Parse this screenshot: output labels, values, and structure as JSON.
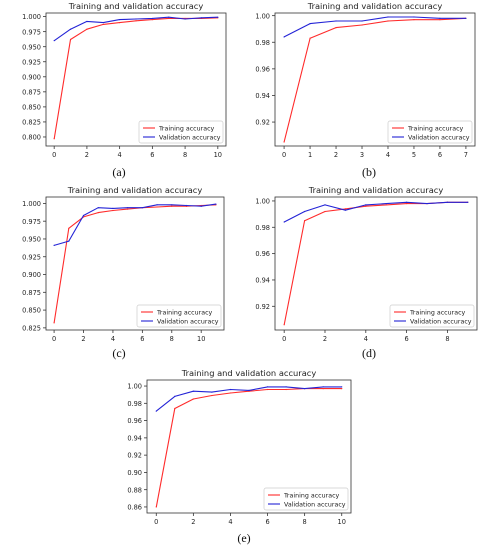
{
  "figure": {
    "panel_labels": [
      "(a)",
      "(b)",
      "(c)",
      "(d)",
      "(e)"
    ]
  },
  "colors": {
    "training": "#ff2b2b",
    "validation": "#2323d6",
    "axis": "#333333"
  },
  "chart_data": [
    {
      "id": "a",
      "type": "line",
      "title": "Training and validation accuracy",
      "xlim": [
        -0.5,
        10.5
      ],
      "ylim": [
        0.785,
        1.006
      ],
      "xticks": [
        0,
        2,
        4,
        6,
        8,
        10
      ],
      "yticks": [
        0.8,
        0.825,
        0.85,
        0.875,
        0.9,
        0.925,
        0.95,
        0.975,
        1.0
      ],
      "ytick_labels": [
        "0.800",
        "0.825",
        "0.850",
        "0.875",
        "0.900",
        "0.925",
        "0.950",
        "0.975",
        "1.000"
      ],
      "legend_position": "bottom-right",
      "series": [
        {
          "name": "Training accuracy",
          "x": [
            0,
            1,
            2,
            3,
            4,
            5,
            6,
            7,
            8,
            9,
            10
          ],
          "y": [
            0.797,
            0.962,
            0.979,
            0.987,
            0.99,
            0.993,
            0.995,
            0.997,
            0.997,
            0.997,
            0.998
          ]
        },
        {
          "name": "Validation accuracy",
          "x": [
            0,
            1,
            2,
            3,
            4,
            5,
            6,
            7,
            8,
            9,
            10
          ],
          "y": [
            0.96,
            0.979,
            0.992,
            0.99,
            0.995,
            0.996,
            0.997,
            0.999,
            0.996,
            0.998,
            0.999
          ]
        }
      ]
    },
    {
      "id": "b",
      "type": "line",
      "title": "Training and validation accuracy",
      "xlim": [
        -0.35,
        7.35
      ],
      "ylim": [
        0.902,
        1.002
      ],
      "xticks": [
        0,
        1,
        2,
        3,
        4,
        5,
        6,
        7
      ],
      "yticks": [
        0.92,
        0.94,
        0.96,
        0.98,
        1.0
      ],
      "ytick_labels": [
        "0.92",
        "0.94",
        "0.96",
        "0.98",
        "1.00"
      ],
      "legend_position": "bottom-right",
      "series": [
        {
          "name": "Training accuracy",
          "x": [
            0,
            1,
            2,
            3,
            4,
            5,
            6,
            7
          ],
          "y": [
            0.905,
            0.983,
            0.991,
            0.993,
            0.996,
            0.997,
            0.997,
            0.998
          ]
        },
        {
          "name": "Validation accuracy",
          "x": [
            0,
            1,
            2,
            3,
            4,
            5,
            6,
            7
          ],
          "y": [
            0.984,
            0.994,
            0.996,
            0.996,
            0.999,
            0.999,
            0.998,
            0.998
          ]
        }
      ]
    },
    {
      "id": "c",
      "type": "line",
      "title": "Training and validation accuracy",
      "xlim": [
        -0.55,
        11.55
      ],
      "ylim": [
        0.822,
        1.009
      ],
      "xticks": [
        0,
        2,
        4,
        6,
        8,
        10
      ],
      "yticks": [
        0.825,
        0.85,
        0.875,
        0.9,
        0.925,
        0.95,
        0.975,
        1.0
      ],
      "ytick_labels": [
        "0.825",
        "0.850",
        "0.875",
        "0.900",
        "0.925",
        "0.950",
        "0.975",
        "1.000"
      ],
      "legend_position": "bottom-right",
      "series": [
        {
          "name": "Training accuracy",
          "x": [
            0,
            1,
            2,
            3,
            4,
            5,
            6,
            7,
            8,
            9,
            10,
            11
          ],
          "y": [
            0.832,
            0.965,
            0.981,
            0.987,
            0.99,
            0.992,
            0.994,
            0.995,
            0.996,
            0.996,
            0.997,
            0.998
          ]
        },
        {
          "name": "Validation accuracy",
          "x": [
            0,
            1,
            2,
            3,
            4,
            5,
            6,
            7,
            8,
            9,
            10,
            11
          ],
          "y": [
            0.941,
            0.947,
            0.983,
            0.994,
            0.993,
            0.994,
            0.994,
            0.998,
            0.998,
            0.997,
            0.996,
            0.999
          ]
        }
      ]
    },
    {
      "id": "d",
      "type": "line",
      "title": "Training and validation accuracy",
      "xlim": [
        -0.45,
        9.45
      ],
      "ylim": [
        0.902,
        1.003
      ],
      "xticks": [
        0,
        2,
        4,
        6,
        8
      ],
      "yticks": [
        0.92,
        0.94,
        0.96,
        0.98,
        1.0
      ],
      "ytick_labels": [
        "0.92",
        "0.94",
        "0.96",
        "0.98",
        "1.00"
      ],
      "legend_position": "bottom-right",
      "series": [
        {
          "name": "Training accuracy",
          "x": [
            0,
            1,
            2,
            3,
            4,
            5,
            6,
            7,
            8,
            9
          ],
          "y": [
            0.906,
            0.985,
            0.992,
            0.994,
            0.996,
            0.997,
            0.998,
            0.998,
            0.999,
            0.999
          ]
        },
        {
          "name": "Validation accuracy",
          "x": [
            0,
            1,
            2,
            3,
            4,
            5,
            6,
            7,
            8,
            9
          ],
          "y": [
            0.984,
            0.992,
            0.997,
            0.993,
            0.997,
            0.998,
            0.999,
            0.998,
            0.999,
            0.999
          ]
        }
      ]
    },
    {
      "id": "e",
      "type": "line",
      "title": "Training and validation accuracy",
      "xlim": [
        -0.5,
        10.5
      ],
      "ylim": [
        0.853,
        1.007
      ],
      "xticks": [
        0,
        2,
        4,
        6,
        8,
        10
      ],
      "yticks": [
        0.86,
        0.88,
        0.9,
        0.92,
        0.94,
        0.96,
        0.98,
        1.0
      ],
      "ytick_labels": [
        "0.86",
        "0.88",
        "0.90",
        "0.92",
        "0.94",
        "0.96",
        "0.98",
        "1.00"
      ],
      "legend_position": "bottom-right",
      "series": [
        {
          "name": "Training accuracy",
          "x": [
            0,
            1,
            2,
            3,
            4,
            5,
            6,
            7,
            8,
            9,
            10
          ],
          "y": [
            0.86,
            0.974,
            0.985,
            0.989,
            0.992,
            0.994,
            0.996,
            0.996,
            0.997,
            0.997,
            0.997
          ]
        },
        {
          "name": "Validation accuracy",
          "x": [
            0,
            1,
            2,
            3,
            4,
            5,
            6,
            7,
            8,
            9,
            10
          ],
          "y": [
            0.971,
            0.988,
            0.994,
            0.993,
            0.996,
            0.995,
            0.999,
            0.999,
            0.997,
            0.999,
            0.999
          ]
        }
      ]
    }
  ]
}
